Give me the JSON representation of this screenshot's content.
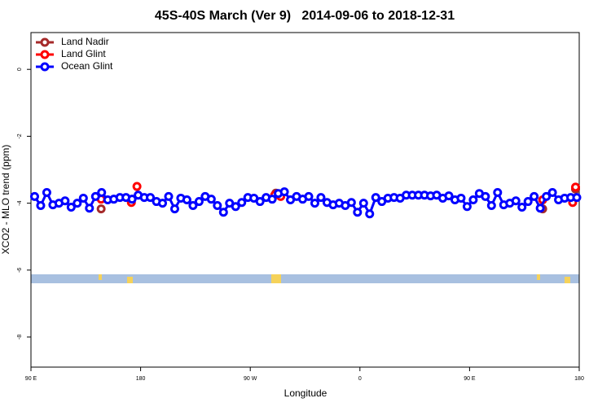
{
  "chart_data": {
    "type": "line",
    "title": "45S-40S March (Ver 9)   2014-09-06 to 2018-12-31",
    "x_label": "Longitude",
    "y_label": "XCO2 - MLO trend (ppm)",
    "xlim": [
      90,
      540
    ],
    "ylim": [
      -8.9,
      1.1
    ],
    "xticks": [
      {
        "value": 90,
        "label": "90 E"
      },
      180,
      {
        "value": 270,
        "label": "90 W"
      },
      {
        "value": 360,
        "label": "0"
      },
      {
        "value": 450,
        "label": "90 E"
      },
      {
        "value": 540,
        "label": "180"
      }
    ],
    "yticks": [
      0,
      -2,
      -4,
      -6,
      -8
    ],
    "legend": "top-left",
    "series": [
      {
        "name": "Land Nadir",
        "color": "#a52a2a",
        "x": [
          147.6,
          291,
          510,
          537
        ],
        "values": [
          -4.17,
          -3.7,
          -4.17,
          -3.58
        ]
      },
      {
        "name": "Land Glint",
        "color": "#ff0000",
        "x": [
          147.6,
          172.4,
          177,
          290,
          295,
          510,
          534.6,
          537
        ],
        "values": [
          -3.88,
          -3.98,
          -3.5,
          -3.76,
          -3.8,
          -3.9,
          -3.98,
          -3.52
        ]
      },
      {
        "name": "Ocean Glint",
        "color": "#0000ff",
        "x": [
          93,
          98,
          103,
          108,
          113,
          118,
          123,
          128,
          133,
          138,
          143,
          148,
          153,
          158,
          163,
          168,
          173,
          178,
          183,
          188,
          193,
          198,
          203,
          208,
          213,
          218,
          223,
          228,
          233,
          238,
          243,
          248,
          253,
          258,
          263,
          268,
          273,
          278,
          283,
          288,
          293,
          298,
          303,
          308,
          313,
          318,
          323,
          328,
          333,
          338,
          343,
          348,
          353,
          358,
          363,
          368,
          373,
          378,
          383,
          388,
          393,
          398,
          403,
          408,
          413,
          418,
          423,
          428,
          433,
          438,
          443,
          448,
          453,
          458,
          463,
          468,
          473,
          478,
          483,
          488,
          493,
          498,
          503,
          508,
          513,
          518,
          523,
          528,
          533,
          538
        ],
        "values": [
          -3.8,
          -4.07,
          -3.68,
          -4.05,
          -4.0,
          -3.93,
          -4.12,
          -4.0,
          -3.85,
          -4.15,
          -3.8,
          -3.68,
          -3.9,
          -3.88,
          -3.83,
          -3.83,
          -3.88,
          -3.76,
          -3.83,
          -3.83,
          -3.95,
          -4.0,
          -3.8,
          -4.17,
          -3.85,
          -3.9,
          -4.07,
          -3.95,
          -3.8,
          -3.88,
          -4.07,
          -4.27,
          -4.0,
          -4.1,
          -3.98,
          -3.83,
          -3.85,
          -3.95,
          -3.83,
          -3.88,
          -3.71,
          -3.66,
          -3.9,
          -3.8,
          -3.88,
          -3.8,
          -4.0,
          -3.83,
          -3.98,
          -4.05,
          -4.0,
          -4.07,
          -3.98,
          -4.27,
          -4.0,
          -4.32,
          -3.83,
          -3.95,
          -3.85,
          -3.83,
          -3.85,
          -3.76,
          -3.76,
          -3.76,
          -3.76,
          -3.78,
          -3.76,
          -3.85,
          -3.78,
          -3.9,
          -3.85,
          -4.1,
          -3.9,
          -3.71,
          -3.8,
          -4.07,
          -3.68,
          -4.05,
          -4.0,
          -3.93,
          -4.12,
          -3.95,
          -3.8,
          -4.15,
          -3.8,
          -3.68,
          -3.9,
          -3.85,
          -3.83,
          -3.83
        ]
      }
    ]
  }
}
